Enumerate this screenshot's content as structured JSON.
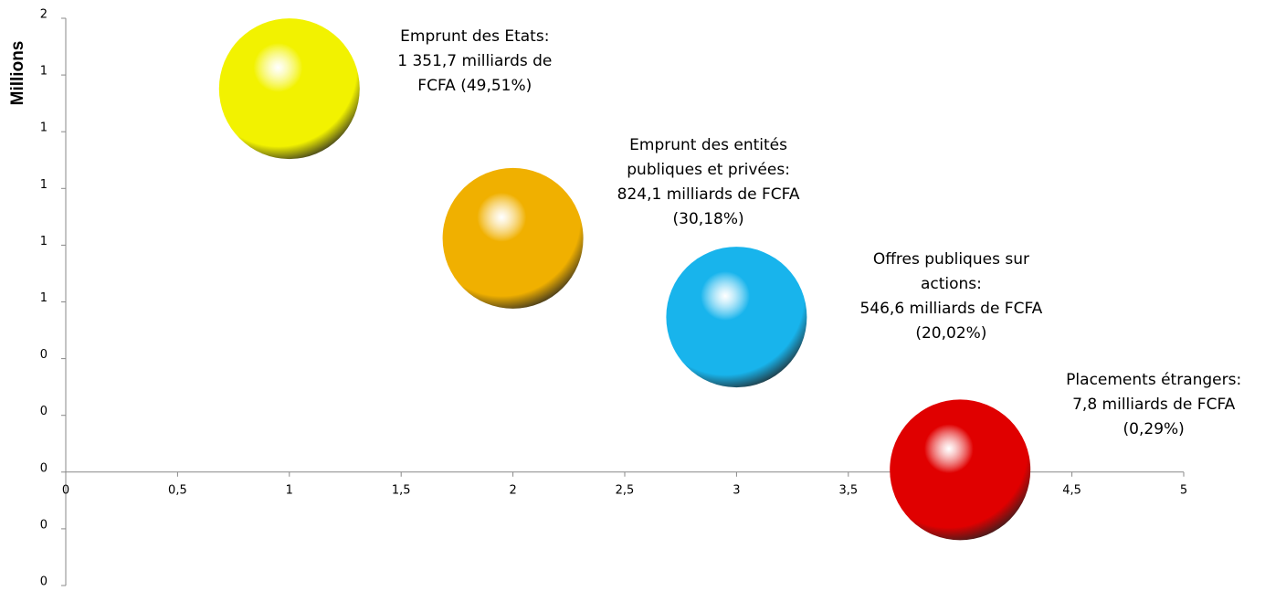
{
  "chart_data": {
    "type": "bubble",
    "y_axis_label": "Millions",
    "x": [
      1,
      2,
      3,
      4
    ],
    "series": [
      {
        "values": [
          1.3517,
          0.8241,
          0.5466,
          0.0078
        ],
        "colors": [
          "#f2f200",
          "#f0b000",
          "#18b4ec",
          "#e00000"
        ]
      }
    ],
    "point_labels": [
      [
        "Emprunt des Etats:",
        "1 351,7  milliards de",
        "FCFA  (49,51%)"
      ],
      [
        "Emprunt des entités",
        "publiques et privées:",
        "824,1 milliards de FCFA",
        "(30,18%)"
      ],
      [
        "Offres publiques sur",
        "actions:",
        "546,6 milliards de FCFA",
        "(20,02%)"
      ],
      [
        "Placements étrangers:",
        "7,8 milliards de FCFA",
        "(0,29%)"
      ]
    ],
    "xlim": [
      0,
      5
    ],
    "xticks": [
      0,
      {
        "value": 0.5,
        "label": "0,5"
      },
      1,
      {
        "value": 1.5,
        "label": "1,5"
      },
      2,
      {
        "value": 2.5,
        "label": "2,5"
      },
      3,
      {
        "value": 3.5,
        "label": "3,5"
      },
      4,
      {
        "value": 4.5,
        "label": "4,5"
      },
      5
    ],
    "ylim": [
      -0.4,
      1.6
    ],
    "yticks": [
      {
        "value": 1.6,
        "label": "2"
      },
      {
        "value": 1.4,
        "label": "1"
      },
      {
        "value": 1.2,
        "label": "1"
      },
      {
        "value": 1.0,
        "label": "1"
      },
      {
        "value": 0.8,
        "label": "1"
      },
      {
        "value": 0.6,
        "label": "1"
      },
      {
        "value": 0.4,
        "label": "0"
      },
      {
        "value": 0.2,
        "label": "0"
      },
      0,
      {
        "value": -0.2,
        "label": "0"
      },
      {
        "value": -0.4,
        "label": "0"
      }
    ]
  }
}
